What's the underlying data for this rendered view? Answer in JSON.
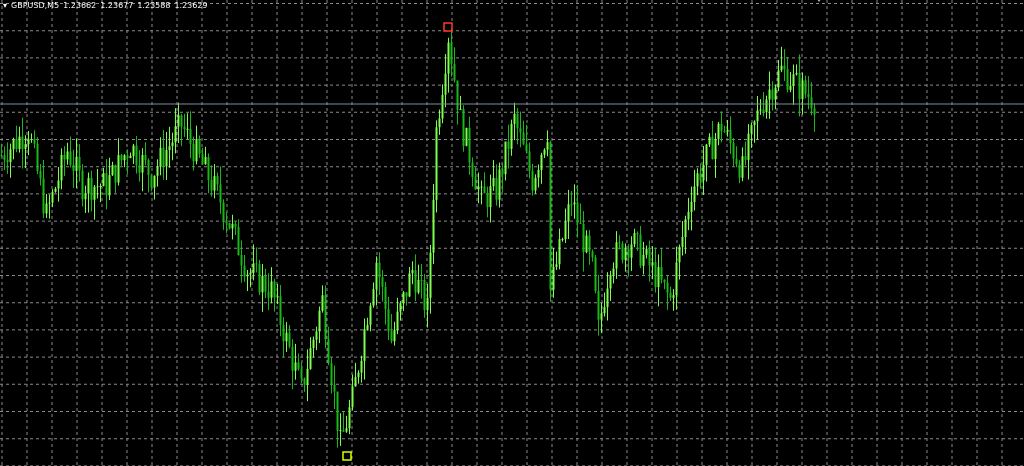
{
  "header": {
    "symbol": "GBPUSD,M5",
    "open": "1.23662",
    "high": "1.23677",
    "low": "1.23588",
    "close": "1.23629"
  },
  "colors": {
    "background": "#000000",
    "grid": "#8a8a8a",
    "bull": "#7cff4c",
    "bear": "#17b817",
    "price_line": "#7a8a9a",
    "high_marker": "#ff3b1f",
    "low_marker": "#d8ff00"
  },
  "chart_data": {
    "type": "candlestick",
    "ylim": [
      1.22905,
      1.23837
    ],
    "grid": true,
    "current_price": 1.23629,
    "close_keypoints": {
      "index": [
        0,
        9,
        15,
        22,
        27,
        35,
        43,
        50,
        60,
        67,
        73,
        82,
        90,
        100,
        107,
        113,
        117,
        125,
        130,
        137,
        142,
        145,
        149,
        153,
        160,
        165,
        171,
        177,
        182,
        183,
        190,
        197,
        199,
        203,
        210,
        217,
        223,
        230,
        240,
        247,
        253,
        260,
        267,
        271
      ],
      "close": [
        1.23527,
        1.23577,
        1.23407,
        1.23537,
        1.23467,
        1.23467,
        1.23547,
        1.23487,
        1.23587,
        1.23507,
        1.23437,
        1.23297,
        1.23257,
        1.23057,
        1.23237,
        1.22947,
        1.23037,
        1.23317,
        1.23157,
        1.23297,
        1.23217,
        1.23577,
        1.23767,
        1.23597,
        1.23437,
        1.23457,
        1.23597,
        1.23477,
        1.23577,
        1.23257,
        1.23437,
        1.23297,
        1.23177,
        1.23317,
        1.23357,
        1.23297,
        1.23237,
        1.23457,
        1.23587,
        1.23497,
        1.23627,
        1.23697,
        1.23657,
        1.23637
      ]
    },
    "high_marker_index": 149,
    "low_marker_index": 114
  }
}
